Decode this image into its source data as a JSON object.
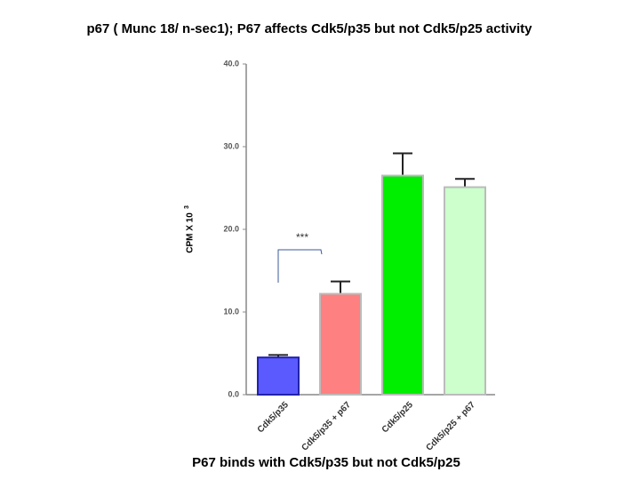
{
  "chart_data": {
    "type": "bar",
    "title": "p67 ( Munc 18/ n-sec1); P67 affects Cdk5/p35 but not Cdk5/p25 activity",
    "caption": "P67 binds with Cdk5/p35 but not Cdk5/p25",
    "y_label": "CPM X 10",
    "y_label_exponent": "3",
    "annotation": "***",
    "categories": [
      "Cdk5/p35",
      "Cdk5/p35 + p67",
      "Cdk5/p25",
      "Cdk5/p25 + p67"
    ],
    "values": [
      4.5,
      12.2,
      26.5,
      25.1
    ],
    "errors": [
      0.3,
      1.5,
      2.7,
      1.0
    ],
    "colors": [
      "#5a5aff",
      "#ff8080",
      "#00ee00",
      "#ccffcc"
    ],
    "ylim": [
      0,
      40
    ],
    "yticks": [
      {
        "value": 0,
        "label": "0.0"
      },
      {
        "value": 10,
        "label": "10.0"
      },
      {
        "value": 20,
        "label": "20.0"
      },
      {
        "value": 30,
        "label": "30.0"
      },
      {
        "value": 40,
        "label": "40.0"
      }
    ]
  }
}
